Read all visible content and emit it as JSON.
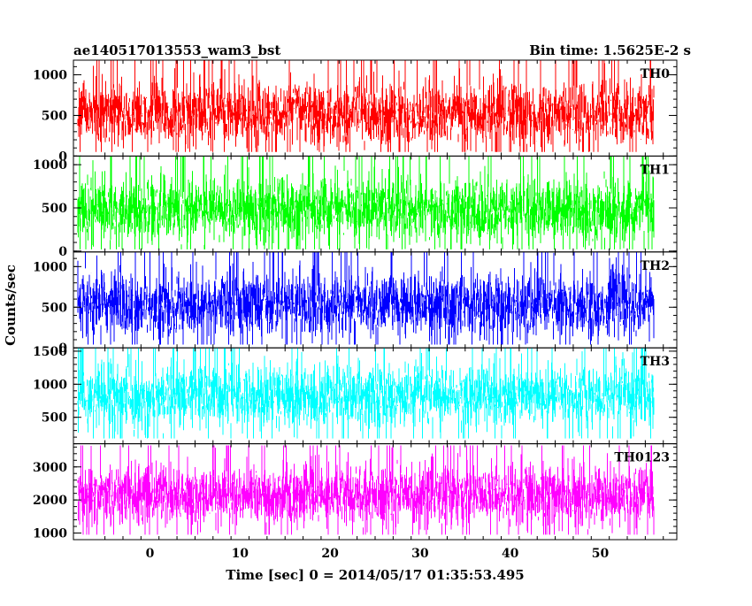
{
  "chart_data": {
    "type": "line",
    "title_left": "ae140517013553_wam3_bst",
    "title_right": "Bin time: 1.5625E-2 s",
    "xlabel": "Time [sec] 0 = 2014/05/17 01:35:53.495",
    "ylabel": "Counts/sec",
    "xlim": [
      -8.5,
      58.5
    ],
    "x_ticks": [
      0,
      10,
      20,
      30,
      40,
      50
    ],
    "data_x_range": [
      -8.0,
      55.9
    ],
    "bin_time_s": 0.015625,
    "grid": false,
    "panels": [
      {
        "name": "TH0",
        "color": "#ff0000",
        "ylim": [
          0,
          1180
        ],
        "yticks": [
          0,
          500,
          1000
        ],
        "mean": 520,
        "low": 50,
        "high": 1180
      },
      {
        "name": "TH1",
        "color": "#00ff00",
        "ylim": [
          -10,
          1100
        ],
        "yticks": [
          0,
          500,
          1000
        ],
        "mean": 480,
        "low": 20,
        "high": 1100
      },
      {
        "name": "TH2",
        "color": "#0000ff",
        "ylim": [
          0,
          1180
        ],
        "yticks": [
          0,
          500,
          1000
        ],
        "mean": 540,
        "low": 40,
        "high": 1180
      },
      {
        "name": "TH3",
        "color": "#00ffff",
        "ylim": [
          100,
          1550
        ],
        "yticks": [
          500,
          1000,
          1500
        ],
        "mean": 820,
        "low": 180,
        "high": 1550
      },
      {
        "name": "TH0123",
        "color": "#ff00ff",
        "ylim": [
          800,
          3700
        ],
        "yticks": [
          1000,
          2000,
          3000
        ],
        "mean": 2150,
        "low": 950,
        "high": 3650
      }
    ]
  }
}
